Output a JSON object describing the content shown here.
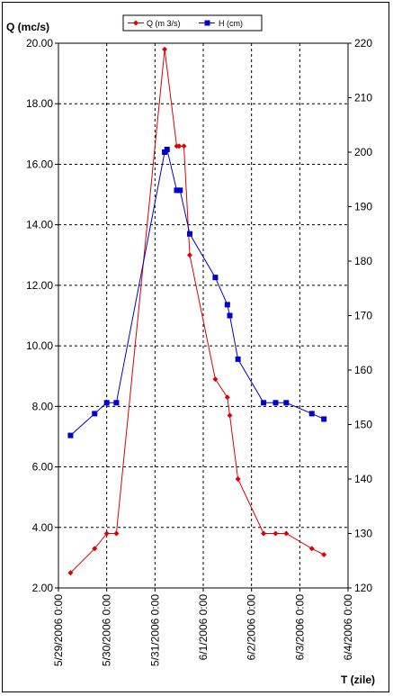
{
  "chart_data": {
    "type": "line",
    "title": "",
    "ylabel_left": "Q (mc/s)",
    "ylabel_right": "",
    "xlabel": "T (zile)",
    "ylim_left": [
      2,
      20
    ],
    "ylim_right": [
      120,
      220
    ],
    "left_ticks": [
      "2.00",
      "4.00",
      "6.00",
      "8.00",
      "10.00",
      "12.00",
      "14.00",
      "16.00",
      "18.00",
      "20.00"
    ],
    "right_ticks": [
      "120",
      "130",
      "140",
      "150",
      "160",
      "170",
      "180",
      "190",
      "200",
      "210",
      "220"
    ],
    "x_ticks": [
      "5/29/2006 0:00",
      "5/30/2006 0:00",
      "5/31/2006 0:00",
      "6/1/2006 0:00",
      "6/2/2006 0:00",
      "6/3/2006 0:00",
      "6/4/2006 0:00"
    ],
    "grid": true,
    "legend_position": "top",
    "series": [
      {
        "name": "Q (m 3/s)",
        "axis": "left",
        "color": "#e00000",
        "marker": "diamond",
        "x": [
          0.25,
          0.75,
          1.0,
          1.2,
          2.2,
          2.45,
          2.5,
          2.6,
          2.72,
          3.25,
          3.5,
          3.55,
          3.72,
          4.25,
          4.5,
          4.72,
          5.25,
          5.5
        ],
        "y": [
          2.5,
          3.3,
          3.8,
          3.8,
          19.8,
          16.6,
          16.6,
          16.6,
          13.0,
          8.9,
          8.3,
          7.7,
          5.6,
          3.8,
          3.8,
          3.8,
          3.3,
          3.1
        ]
      },
      {
        "name": "H (cm)",
        "axis": "right",
        "color": "#0000cc",
        "marker": "square",
        "x": [
          0.25,
          0.75,
          1.0,
          1.2,
          2.2,
          2.25,
          2.45,
          2.52,
          2.72,
          3.25,
          3.5,
          3.55,
          3.72,
          4.25,
          4.5,
          4.72,
          5.25,
          5.5
        ],
        "y": [
          148,
          152,
          154,
          154,
          200,
          200.5,
          193,
          193,
          185,
          177,
          172,
          170,
          162,
          154,
          154,
          154,
          152,
          151
        ]
      }
    ]
  }
}
